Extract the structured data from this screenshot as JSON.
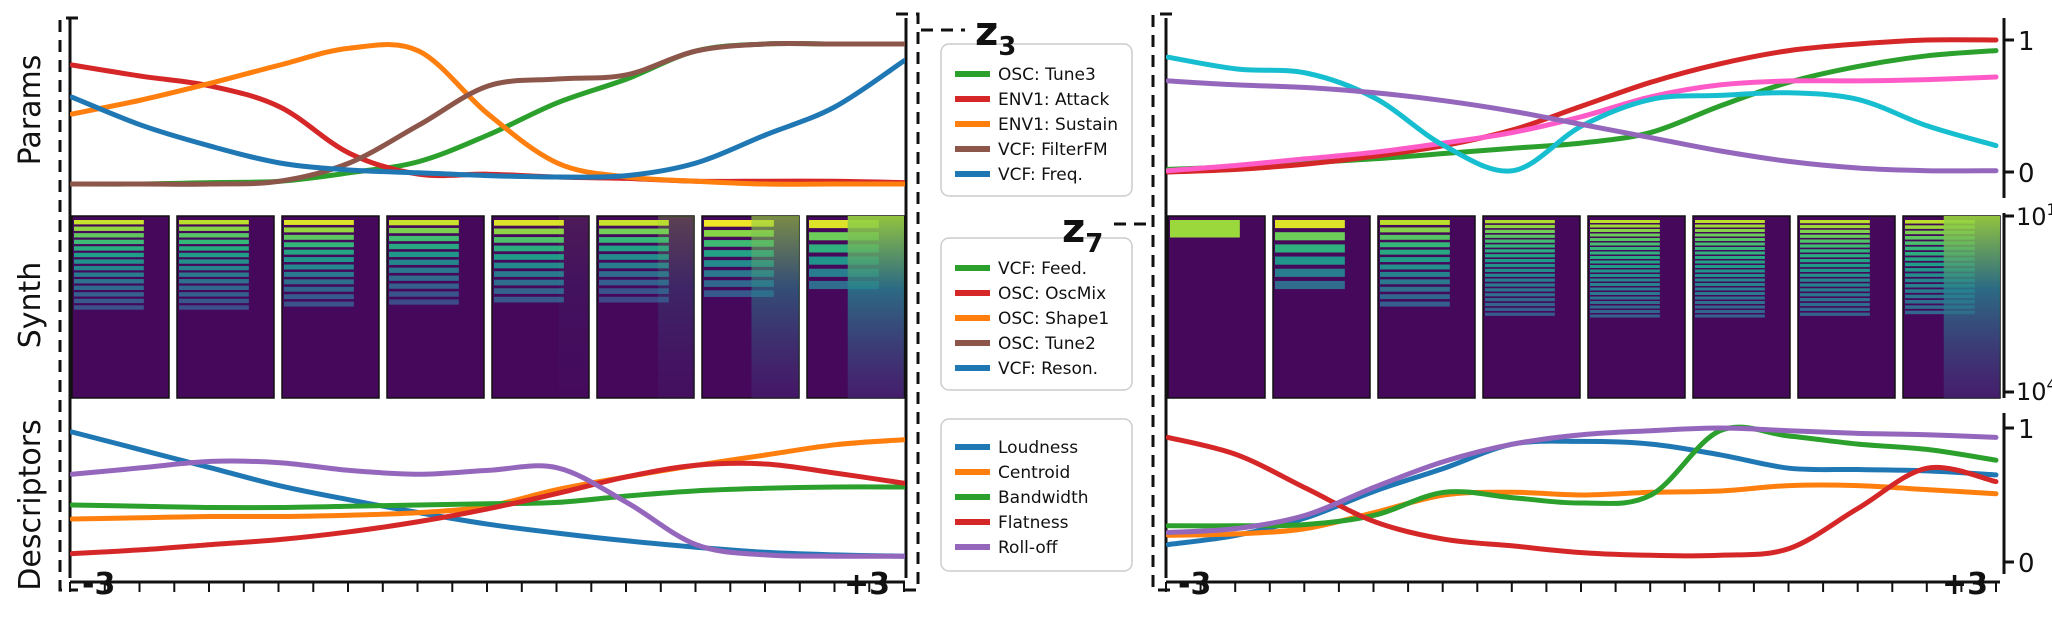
{
  "row_labels": [
    "Params",
    "Synth",
    "Descriptors"
  ],
  "latent_labels": [
    {
      "letter": "z",
      "sub": "3"
    },
    {
      "letter": "z",
      "sub": "7"
    }
  ],
  "x_tick_labels": {
    "min": "-3",
    "max": "+3"
  },
  "right_axis_ticks": {
    "params": [
      "1",
      "0"
    ],
    "synth": [
      {
        "base": "10",
        "exp": "1"
      },
      {
        "base": "10",
        "exp": "4"
      }
    ],
    "descriptors": [
      "1",
      "0"
    ]
  },
  "colors": {
    "green": "#2ca02c",
    "red": "#d62728",
    "orange": "#ff7f0e",
    "brown": "#8c564b",
    "blue": "#1f77b4",
    "purple": "#9467bd",
    "pink": "#ff5bc8",
    "cyan": "#17becf"
  },
  "chart_data": [
    {
      "type": "line",
      "panel": "z3-params",
      "x": [
        -3,
        -2.5,
        -2,
        -1.5,
        -1,
        -0.5,
        0,
        0.5,
        1,
        1.5,
        2,
        2.5,
        3
      ],
      "ylim": [
        0,
        1
      ],
      "series": [
        {
          "name": "OSC: Tune3",
          "color": "green",
          "values": [
            0,
            0,
            0.01,
            0.02,
            0.08,
            0.16,
            0.35,
            0.58,
            0.75,
            0.95,
            1,
            1,
            1
          ]
        },
        {
          "name": "ENV1: Attack",
          "color": "red",
          "values": [
            0.85,
            0.77,
            0.7,
            0.55,
            0.22,
            0.07,
            0.07,
            0.05,
            0.04,
            0.02,
            0.02,
            0.02,
            0.01
          ]
        },
        {
          "name": "ENV1: Sustain",
          "color": "orange",
          "values": [
            0.5,
            0.6,
            0.72,
            0.85,
            0.97,
            0.95,
            0.5,
            0.15,
            0.05,
            0.02,
            0,
            0,
            0
          ]
        },
        {
          "name": "VCF: FilterFM",
          "color": "brown",
          "values": [
            0,
            0,
            0,
            0.02,
            0.15,
            0.42,
            0.7,
            0.75,
            0.78,
            0.95,
            1,
            1,
            1
          ]
        },
        {
          "name": "VCF: Freq.",
          "color": "blue",
          "values": [
            0.62,
            0.42,
            0.27,
            0.15,
            0.1,
            0.08,
            0.06,
            0.05,
            0.06,
            0.15,
            0.35,
            0.55,
            0.88
          ]
        }
      ]
    },
    {
      "type": "line",
      "panel": "z3-descriptors",
      "x": [
        -3,
        -2.5,
        -2,
        -1.5,
        -1,
        -0.5,
        0,
        0.5,
        1,
        1.5,
        2,
        2.5,
        3
      ],
      "ylim": [
        0,
        1
      ],
      "series": [
        {
          "name": "Loudness",
          "color": "blue",
          "values": [
            1,
            0.86,
            0.72,
            0.58,
            0.47,
            0.37,
            0.28,
            0.21,
            0.15,
            0.1,
            0.06,
            0.04,
            0.03
          ]
        },
        {
          "name": "Centroid",
          "color": "orange",
          "values": [
            0.32,
            0.33,
            0.34,
            0.34,
            0.35,
            0.37,
            0.42,
            0.55,
            0.65,
            0.74,
            0.82,
            0.9,
            0.94
          ]
        },
        {
          "name": "Bandwidth",
          "color": "green",
          "values": [
            0.43,
            0.42,
            0.41,
            0.41,
            0.42,
            0.43,
            0.44,
            0.45,
            0.5,
            0.54,
            0.56,
            0.57,
            0.57
          ]
        },
        {
          "name": "Flatness",
          "color": "red",
          "values": [
            0.05,
            0.08,
            0.12,
            0.16,
            0.22,
            0.3,
            0.4,
            0.52,
            0.65,
            0.74,
            0.75,
            0.68,
            0.6
          ]
        },
        {
          "name": "Roll-off",
          "color": "purple",
          "values": [
            0.67,
            0.72,
            0.77,
            0.76,
            0.7,
            0.67,
            0.7,
            0.72,
            0.45,
            0.12,
            0.04,
            0.03,
            0.03
          ]
        }
      ]
    },
    {
      "type": "line",
      "panel": "z7-params",
      "x": [
        -3,
        -2.5,
        -2,
        -1.5,
        -1,
        -0.5,
        0,
        0.5,
        1,
        1.5,
        2,
        2.5,
        3
      ],
      "ylim": [
        0,
        1
      ],
      "series": [
        {
          "color": "green",
          "values": [
            0.02,
            0.04,
            0.07,
            0.1,
            0.14,
            0.18,
            0.22,
            0.3,
            0.5,
            0.68,
            0.8,
            0.88,
            0.92
          ]
        },
        {
          "color": "red",
          "values": [
            0,
            0.02,
            0.06,
            0.12,
            0.2,
            0.32,
            0.5,
            0.68,
            0.82,
            0.92,
            0.97,
            1,
            1
          ]
        },
        {
          "color": "pink",
          "values": [
            0.01,
            0.05,
            0.1,
            0.15,
            0.22,
            0.3,
            0.42,
            0.57,
            0.66,
            0.69,
            0.69,
            0.7,
            0.72
          ]
        },
        {
          "color": "cyan",
          "values": [
            0.87,
            0.78,
            0.75,
            0.56,
            0.2,
            0.01,
            0.35,
            0.55,
            0.58,
            0.6,
            0.55,
            0.35,
            0.2
          ]
        },
        {
          "color": "purple",
          "values": [
            0.69,
            0.66,
            0.64,
            0.6,
            0.54,
            0.46,
            0.36,
            0.26,
            0.16,
            0.08,
            0.03,
            0.01,
            0.01
          ]
        }
      ]
    },
    {
      "type": "line",
      "panel": "z7-descriptors",
      "x": [
        -3,
        -2.5,
        -2,
        -1.5,
        -1,
        -0.5,
        0,
        0.5,
        1,
        1.5,
        2,
        2.5,
        3
      ],
      "ylim": [
        0,
        1
      ],
      "series": [
        {
          "name": "Loudness",
          "color": "blue",
          "values": [
            0.13,
            0.2,
            0.33,
            0.53,
            0.7,
            0.88,
            0.9,
            0.88,
            0.8,
            0.7,
            0.69,
            0.68,
            0.65
          ]
        },
        {
          "name": "Centroid",
          "color": "orange",
          "values": [
            0.2,
            0.21,
            0.25,
            0.37,
            0.5,
            0.52,
            0.5,
            0.52,
            0.53,
            0.57,
            0.57,
            0.54,
            0.51
          ]
        },
        {
          "name": "Bandwidth",
          "color": "green",
          "values": [
            0.27,
            0.27,
            0.28,
            0.35,
            0.52,
            0.48,
            0.44,
            0.5,
            0.98,
            0.94,
            0.88,
            0.84,
            0.76
          ]
        },
        {
          "name": "Flatness",
          "color": "red",
          "values": [
            0.93,
            0.8,
            0.55,
            0.3,
            0.17,
            0.12,
            0.07,
            0.05,
            0.05,
            0.1,
            0.4,
            0.7,
            0.6
          ]
        },
        {
          "name": "Roll-off",
          "color": "purple",
          "values": [
            0.22,
            0.25,
            0.35,
            0.56,
            0.75,
            0.88,
            0.95,
            0.98,
            1,
            0.98,
            0.96,
            0.95,
            0.93
          ]
        }
      ]
    },
    {
      "type": "heatmap",
      "panel": "z3-synth",
      "x": [
        -3,
        -2.14,
        -1.29,
        -0.43,
        0.43,
        1.29,
        2.14,
        3
      ],
      "frames": [
        {
          "harmonics": 14,
          "top_intensity": 0.92,
          "decay": 0.1,
          "smear": 0
        },
        {
          "harmonics": 14,
          "top_intensity": 0.9,
          "decay": 0.1,
          "smear": 0
        },
        {
          "harmonics": 12,
          "top_intensity": 0.95,
          "decay": 0.12,
          "smear": 0
        },
        {
          "harmonics": 11,
          "top_intensity": 0.92,
          "decay": 0.14,
          "smear": 0
        },
        {
          "harmonics": 10,
          "top_intensity": 0.95,
          "decay": 0.14,
          "smear": 0.1
        },
        {
          "harmonics": 10,
          "top_intensity": 0.92,
          "decay": 0.16,
          "smear": 0.3
        },
        {
          "harmonics": 8,
          "top_intensity": 0.98,
          "decay": 0.18,
          "smear": 0.7
        },
        {
          "harmonics": 6,
          "top_intensity": 0.95,
          "decay": 0.2,
          "smear": 1
        }
      ]
    },
    {
      "type": "heatmap",
      "panel": "z7-synth",
      "x": [
        -3,
        -2.14,
        -1.29,
        -0.43,
        0.43,
        1.29,
        2.14,
        3
      ],
      "frames": [
        {
          "harmonics": 1,
          "top_intensity": 0.85,
          "decay": 0.4,
          "smear": 0
        },
        {
          "harmonics": 6,
          "top_intensity": 0.95,
          "decay": 0.2,
          "smear": 0
        },
        {
          "harmonics": 12,
          "top_intensity": 0.9,
          "decay": 0.1,
          "smear": 0
        },
        {
          "harmonics": 20,
          "top_intensity": 0.88,
          "decay": 0.06,
          "smear": 0
        },
        {
          "harmonics": 22,
          "top_intensity": 0.9,
          "decay": 0.05,
          "smear": 0
        },
        {
          "harmonics": 22,
          "top_intensity": 0.9,
          "decay": 0.05,
          "smear": 0
        },
        {
          "harmonics": 20,
          "top_intensity": 0.9,
          "decay": 0.055,
          "smear": 0
        },
        {
          "harmonics": 18,
          "top_intensity": 0.9,
          "decay": 0.06,
          "smear": 1
        }
      ]
    }
  ],
  "legends": {
    "z3": [
      {
        "label": "OSC: Tune3",
        "color": "green"
      },
      {
        "label": "ENV1: Attack",
        "color": "red"
      },
      {
        "label": "ENV1: Sustain",
        "color": "orange"
      },
      {
        "label": "VCF: FilterFM",
        "color": "brown"
      },
      {
        "label": "VCF: Freq.",
        "color": "blue"
      }
    ],
    "z7": [
      {
        "label": "VCF: Feed.",
        "color": "green"
      },
      {
        "label": "OSC: OscMix",
        "color": "red"
      },
      {
        "label": "OSC: Shape1",
        "color": "orange"
      },
      {
        "label": "OSC: Tune2",
        "color": "brown"
      },
      {
        "label": "VCF: Reson.",
        "color": "blue"
      }
    ],
    "descriptors": [
      {
        "label": "Loudness",
        "color": "blue"
      },
      {
        "label": "Centroid",
        "color": "orange"
      },
      {
        "label": "Bandwidth",
        "color": "green"
      },
      {
        "label": "Flatness",
        "color": "red"
      },
      {
        "label": "Roll-off",
        "color": "purple"
      }
    ]
  }
}
